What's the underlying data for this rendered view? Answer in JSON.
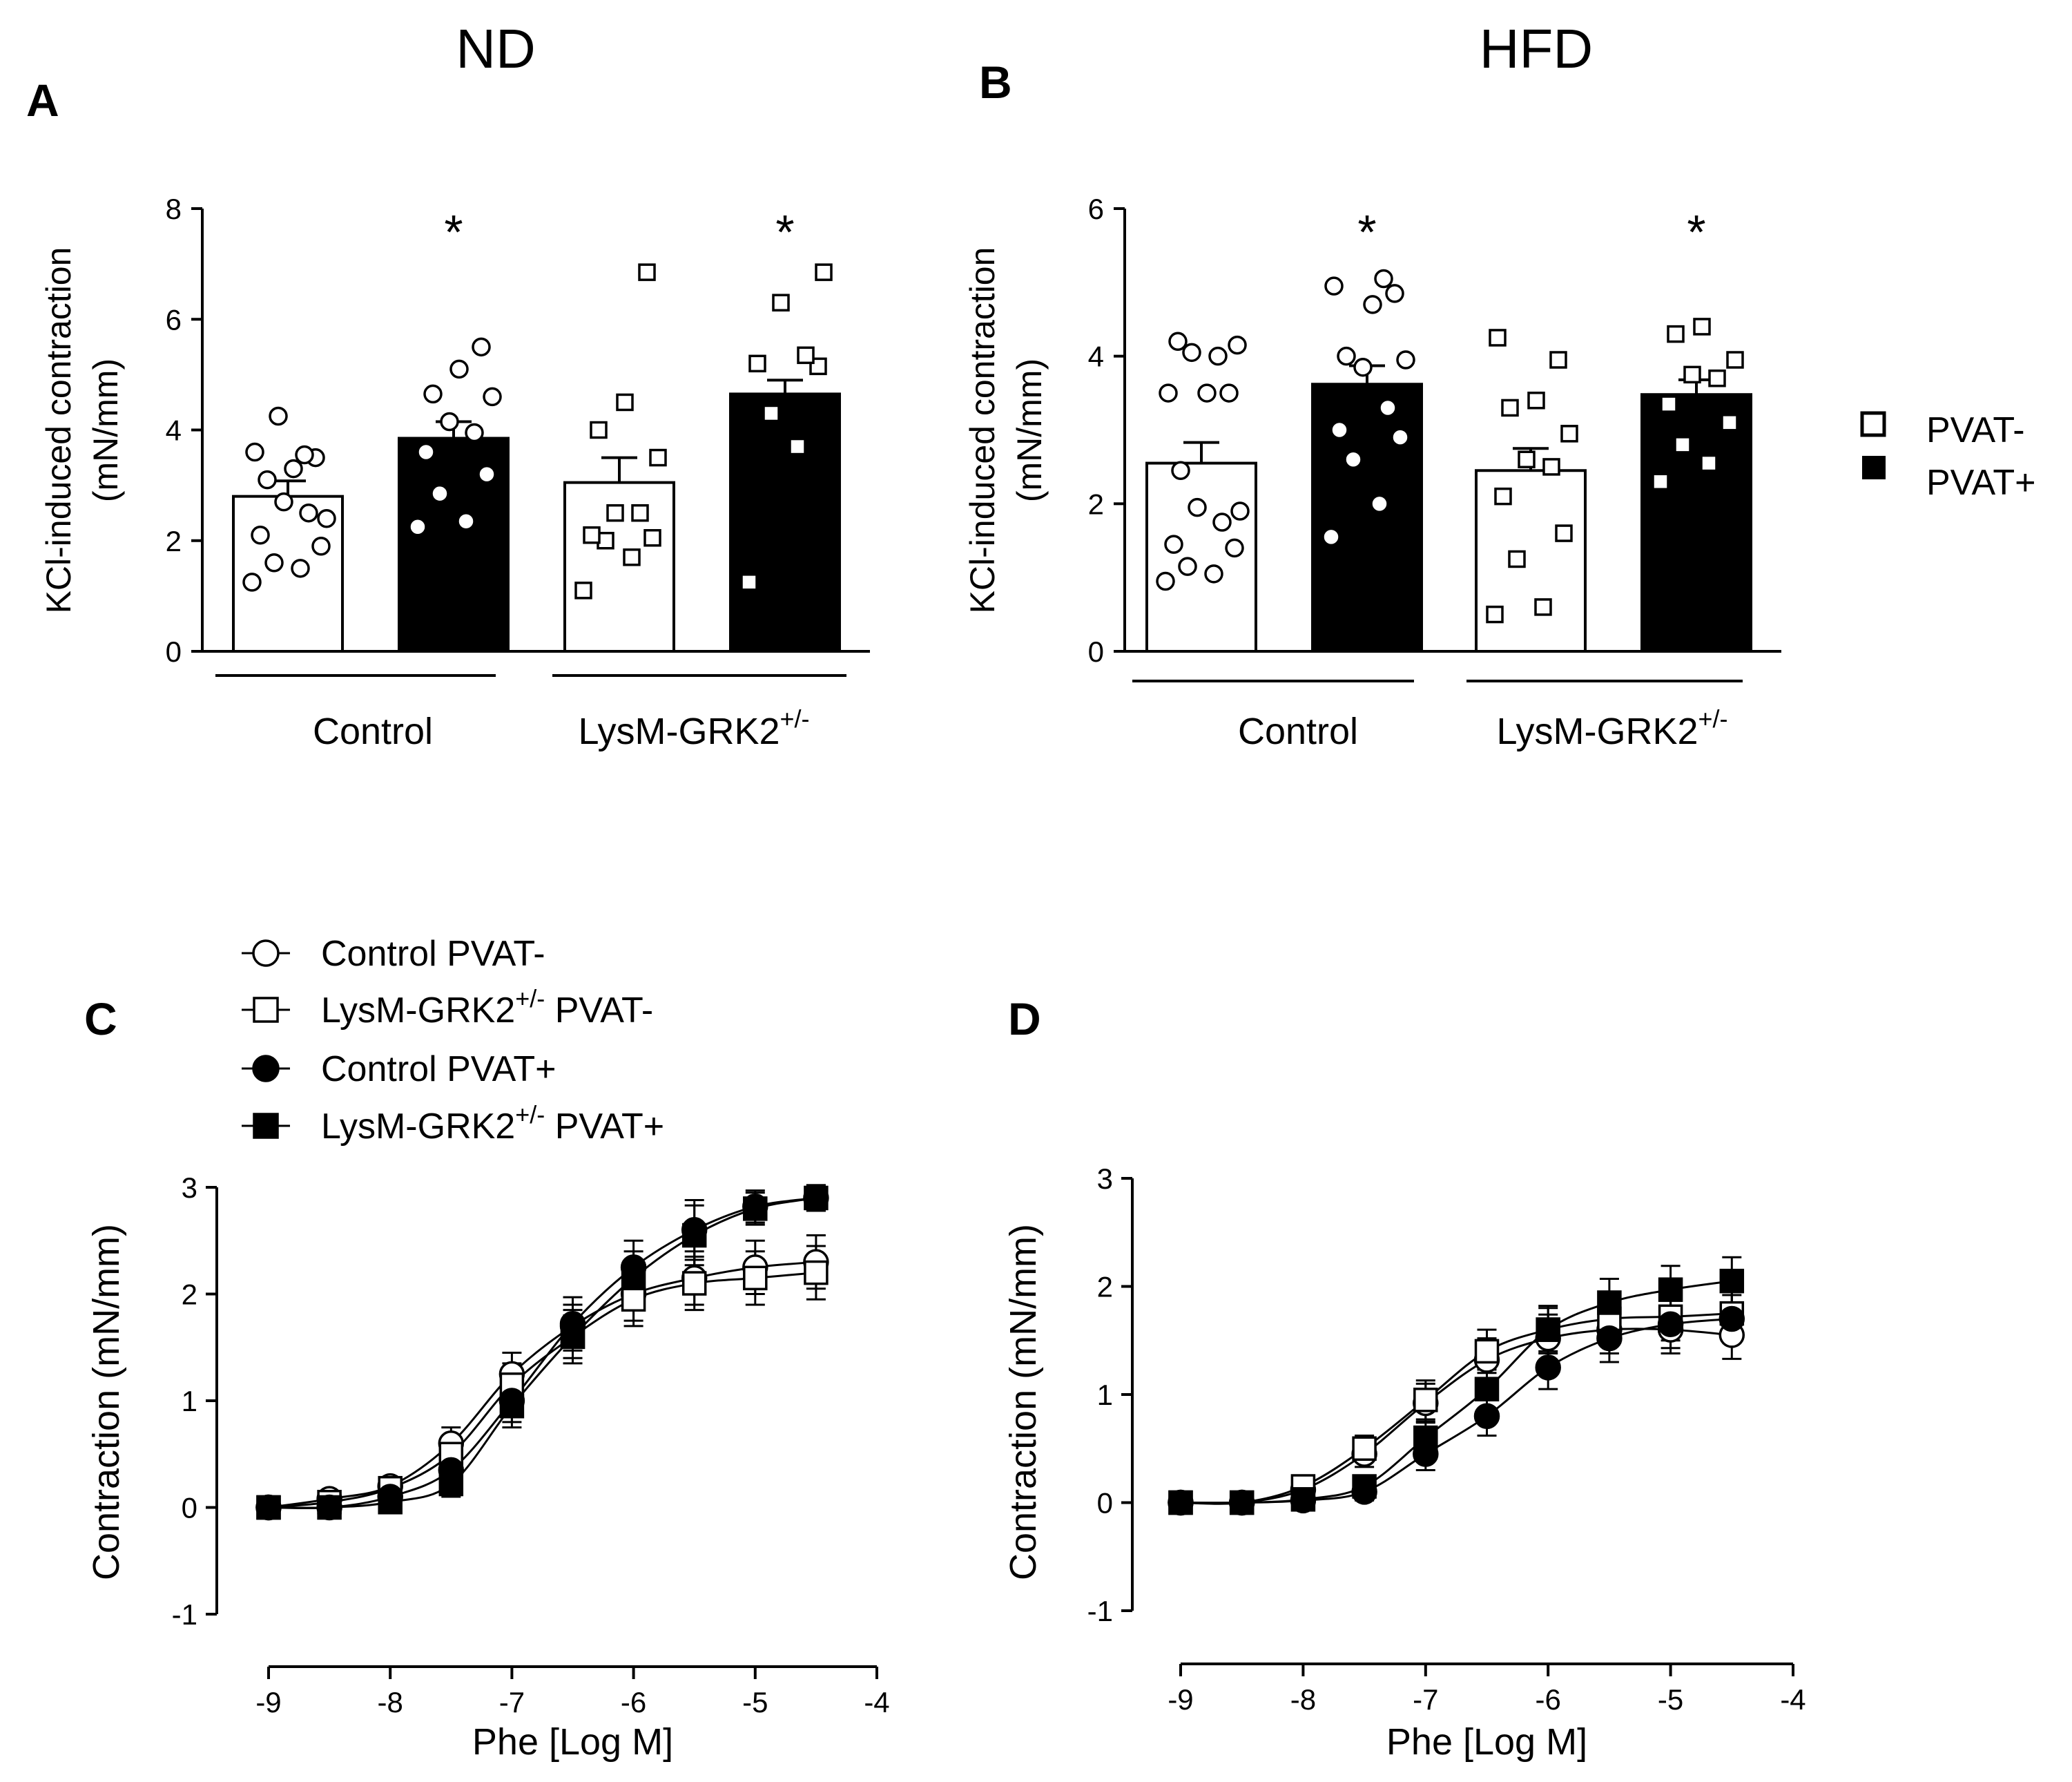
{
  "colors": {
    "black": "#000000",
    "white": "#ffffff"
  },
  "legend_ab": {
    "items": [
      "PVAT-",
      "PVAT+"
    ]
  },
  "legend_c": [
    {
      "label": "Control PVAT-",
      "marker": "circle",
      "fill": "#ffffff"
    },
    {
      "label": "LysM-GRK2",
      "sup": "+/-",
      "suffix": " PVAT-",
      "marker": "square",
      "fill": "#ffffff"
    },
    {
      "label": "Control PVAT+",
      "marker": "circle",
      "fill": "#000000"
    },
    {
      "label": "LysM-GRK2",
      "sup": "+/-",
      "suffix": " PVAT+",
      "marker": "square",
      "fill": "#000000"
    }
  ],
  "chart_data": [
    {
      "panel": "A",
      "type": "bar",
      "title": "ND",
      "ylabel": "KCl-induced contraction",
      "ylabel2": "(mN/mm)",
      "ylim": [
        0,
        8
      ],
      "yticks": [
        0,
        2,
        4,
        6,
        8
      ],
      "groups": [
        {
          "label": "Control",
          "sup": ""
        },
        {
          "label": "LysM-GRK2",
          "sup": "+/-"
        }
      ],
      "bars": [
        {
          "name": "Control PVAT-",
          "fill": "#ffffff",
          "marker": "circle",
          "mean": 2.8,
          "sem": 0.28,
          "star": false,
          "points": [
            1.25,
            1.5,
            1.6,
            1.9,
            2.1,
            2.5,
            2.7,
            2.4,
            3.1,
            3.3,
            3.5,
            3.6,
            3.55,
            4.25
          ]
        },
        {
          "name": "Control PVAT+",
          "fill": "#000000",
          "marker": "circle",
          "mean": 3.85,
          "sem": 0.3,
          "star": true,
          "points": [
            2.25,
            2.35,
            2.85,
            3.2,
            3.6,
            3.95,
            4.15,
            4.6,
            4.65,
            5.1,
            5.5
          ]
        },
        {
          "name": "LysM-GRK2+/- PVAT-",
          "fill": "#ffffff",
          "marker": "square",
          "mean": 3.05,
          "sem": 0.45,
          "star": false,
          "points": [
            1.1,
            1.7,
            2.0,
            2.05,
            2.1,
            2.5,
            2.5,
            3.5,
            4.0,
            4.5,
            6.85
          ]
        },
        {
          "name": "LysM-GRK2+/- PVAT+",
          "fill": "#000000",
          "marker": "square",
          "mean": 4.65,
          "sem": 0.25,
          "star": true,
          "points": [
            1.25,
            3.7,
            4.3,
            5.15,
            5.2,
            5.35,
            6.3,
            6.85
          ]
        }
      ]
    },
    {
      "panel": "B",
      "type": "bar",
      "title": "HFD",
      "ylabel": "KCl-induced contraction",
      "ylabel2": "(mN/mm)",
      "ylim": [
        0,
        6
      ],
      "yticks": [
        0,
        2,
        4,
        6
      ],
      "groups": [
        {
          "label": "Control",
          "sup": ""
        },
        {
          "label": "LysM-GRK2",
          "sup": "+/-"
        }
      ],
      "bars": [
        {
          "name": "Control PVAT-",
          "fill": "#ffffff",
          "marker": "circle",
          "mean": 2.55,
          "sem": 0.28,
          "star": false,
          "points": [
            0.95,
            1.05,
            1.15,
            1.4,
            1.45,
            1.75,
            1.95,
            1.9,
            2.45,
            3.5,
            3.5,
            3.5,
            4.0,
            4.05,
            4.15,
            4.2
          ]
        },
        {
          "name": "Control PVAT+",
          "fill": "#000000",
          "marker": "circle",
          "mean": 3.62,
          "sem": 0.25,
          "star": true,
          "points": [
            1.55,
            2.0,
            2.6,
            2.9,
            3.0,
            3.3,
            3.85,
            3.95,
            4.0,
            4.7,
            4.85,
            4.95,
            5.05
          ]
        },
        {
          "name": "LysM-GRK2+/- PVAT-",
          "fill": "#ffffff",
          "marker": "square",
          "mean": 2.45,
          "sem": 0.3,
          "star": false,
          "points": [
            0.5,
            0.6,
            1.25,
            1.6,
            2.1,
            2.5,
            2.6,
            2.95,
            3.3,
            3.4,
            3.95,
            4.25
          ]
        },
        {
          "name": "LysM-GRK2+/- PVAT+",
          "fill": "#000000",
          "marker": "square",
          "mean": 3.48,
          "sem": 0.2,
          "star": true,
          "points": [
            2.3,
            2.55,
            2.8,
            3.1,
            3.35,
            3.7,
            3.75,
            3.95,
            4.3,
            4.4
          ]
        }
      ]
    },
    {
      "panel": "C",
      "type": "line",
      "xlabel": "Phe [Log M]",
      "ylabel": "Contraction (mN/mm)",
      "xlim": [
        -9,
        -4
      ],
      "ylim": [
        -1,
        3
      ],
      "xticks": [
        -9,
        -8,
        -7,
        -6,
        -5,
        -4
      ],
      "yticks": [
        -1,
        0,
        1,
        2,
        3
      ],
      "x": [
        -9,
        -8.5,
        -8,
        -7.5,
        -7,
        -6.5,
        -6,
        -5.5,
        -5,
        -4.5
      ],
      "series": [
        {
          "name": "Control PVAT-",
          "marker": "circle",
          "fill": "#ffffff",
          "values": [
            0.0,
            0.08,
            0.2,
            0.6,
            1.25,
            1.7,
            2.0,
            2.15,
            2.25,
            2.3
          ],
          "err": [
            0.05,
            0.06,
            0.08,
            0.15,
            0.2,
            0.2,
            0.25,
            0.25,
            0.25,
            0.25
          ]
        },
        {
          "name": "LysM-GRK2+/- PVAT-",
          "marker": "square",
          "fill": "#ffffff",
          "values": [
            0.0,
            0.05,
            0.18,
            0.5,
            1.15,
            1.6,
            1.95,
            2.1,
            2.15,
            2.2
          ],
          "err": [
            0.05,
            0.06,
            0.08,
            0.15,
            0.2,
            0.2,
            0.25,
            0.25,
            0.25,
            0.25
          ]
        },
        {
          "name": "Control PVAT+",
          "marker": "circle",
          "fill": "#000000",
          "values": [
            0.0,
            0.0,
            0.1,
            0.35,
            1.0,
            1.72,
            2.25,
            2.6,
            2.82,
            2.9
          ],
          "err": [
            0.05,
            0.05,
            0.08,
            0.12,
            0.2,
            0.25,
            0.25,
            0.28,
            0.15,
            0.12
          ]
        },
        {
          "name": "LysM-GRK2+/- PVAT+",
          "marker": "square",
          "fill": "#000000",
          "values": [
            0.0,
            0.0,
            0.05,
            0.22,
            0.95,
            1.6,
            2.15,
            2.55,
            2.8,
            2.9
          ],
          "err": [
            0.05,
            0.05,
            0.08,
            0.12,
            0.2,
            0.25,
            0.25,
            0.28,
            0.15,
            0.12
          ]
        }
      ]
    },
    {
      "panel": "D",
      "type": "line",
      "xlabel": "Phe [Log M]",
      "ylabel": "Contraction (mN/mm)",
      "xlim": [
        -9,
        -4
      ],
      "ylim": [
        -1,
        3
      ],
      "xticks": [
        -9,
        -8,
        -7,
        -6,
        -5,
        -4
      ],
      "yticks": [
        -1,
        0,
        1,
        2,
        3
      ],
      "x": [
        -9,
        -8.5,
        -8,
        -7.5,
        -7,
        -6.5,
        -6,
        -5.5,
        -5,
        -4.5
      ],
      "series": [
        {
          "name": "Control PVAT-",
          "marker": "circle",
          "fill": "#ffffff",
          "values": [
            0.0,
            0.0,
            0.12,
            0.45,
            0.92,
            1.32,
            1.52,
            1.6,
            1.6,
            1.55
          ],
          "err": [
            0.04,
            0.04,
            0.06,
            0.12,
            0.18,
            0.2,
            0.22,
            0.22,
            0.22,
            0.22
          ]
        },
        {
          "name": "LysM-GRK2+/- PVAT-",
          "marker": "square",
          "fill": "#ffffff",
          "values": [
            0.0,
            0.0,
            0.15,
            0.5,
            0.95,
            1.4,
            1.6,
            1.7,
            1.72,
            1.75
          ],
          "err": [
            0.04,
            0.04,
            0.06,
            0.12,
            0.18,
            0.2,
            0.22,
            0.22,
            0.22,
            0.22
          ]
        },
        {
          "name": "Control PVAT+",
          "marker": "circle",
          "fill": "#000000",
          "values": [
            0.0,
            0.0,
            0.02,
            0.1,
            0.45,
            0.8,
            1.25,
            1.52,
            1.65,
            1.7
          ],
          "err": [
            0.04,
            0.04,
            0.05,
            0.08,
            0.15,
            0.18,
            0.2,
            0.22,
            0.22,
            0.22
          ]
        },
        {
          "name": "LysM-GRK2+/- PVAT+",
          "marker": "square",
          "fill": "#000000",
          "values": [
            0.0,
            0.0,
            0.03,
            0.15,
            0.6,
            1.05,
            1.6,
            1.85,
            1.97,
            2.05
          ],
          "err": [
            0.04,
            0.04,
            0.05,
            0.08,
            0.15,
            0.18,
            0.2,
            0.22,
            0.22,
            0.22
          ]
        }
      ]
    }
  ]
}
